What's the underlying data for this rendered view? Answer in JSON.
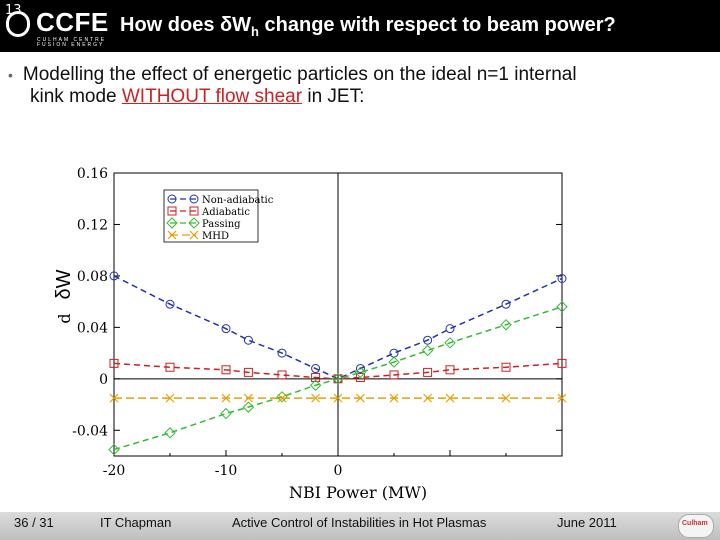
{
  "header": {
    "slide_number": "13",
    "logo_text": "CCFE",
    "logo_sub": "CULHAM CENTRE FUSION ENERGY",
    "title_pre": "How does δW",
    "title_sub": "h",
    "title_post": " change with respect to beam power?"
  },
  "bullet": {
    "line1": "Modelling the effect of energetic particles on the ideal n=1 internal",
    "line2_pre": "kink mode ",
    "line2_highlight": "WITHOUT flow shear",
    "line2_post": " in JET:"
  },
  "chart_data": {
    "type": "line",
    "xlabel": "NBI Power (MW)",
    "ylabel_prefix": "d",
    "ylabel": "δW",
    "xlim": [
      -20,
      20
    ],
    "ylim": [
      -0.06,
      0.16
    ],
    "xticks": [
      -20,
      -10,
      0
    ],
    "yticks": [
      -0.04,
      0,
      0.04,
      0.08,
      0.12,
      0.16
    ],
    "ytick_labels": [
      "-0.04",
      "0",
      "0.04",
      "0.08",
      "0.12",
      "0.16"
    ],
    "xtick_labels": [
      "-20",
      "-10",
      "0"
    ],
    "legend_position": "top-left",
    "series": [
      {
        "name": "Non-adiabatic",
        "color": "#2233aa",
        "marker": "circle",
        "dash": "6,4",
        "x": [
          -20,
          -15,
          -10,
          -8,
          -5,
          -2,
          0,
          2,
          5,
          8,
          10,
          15,
          20
        ],
        "y": [
          0.08,
          0.058,
          0.039,
          0.03,
          0.02,
          0.008,
          0.0,
          0.008,
          0.02,
          0.03,
          0.039,
          0.058,
          0.078
        ]
      },
      {
        "name": "Adiabatic",
        "color": "#cc2222",
        "marker": "square",
        "dash": "6,4",
        "x": [
          -20,
          -15,
          -10,
          -8,
          -5,
          -2,
          0,
          2,
          5,
          8,
          10,
          15,
          20
        ],
        "y": [
          0.012,
          0.009,
          0.007,
          0.005,
          0.003,
          0.001,
          0.0,
          0.001,
          0.003,
          0.005,
          0.007,
          0.009,
          0.012
        ]
      },
      {
        "name": "Passing",
        "color": "#33bb33",
        "marker": "diamond",
        "dash": "6,4",
        "x": [
          -20,
          -15,
          -10,
          -8,
          -5,
          -2,
          0,
          2,
          5,
          8,
          10,
          15,
          20
        ],
        "y": [
          -0.055,
          -0.042,
          -0.027,
          -0.022,
          -0.014,
          -0.005,
          0.0,
          0.005,
          0.013,
          0.022,
          0.028,
          0.042,
          0.056
        ]
      },
      {
        "name": "MHD",
        "color": "#e8a000",
        "marker": "x",
        "dash": "8,4",
        "x": [
          -20,
          -15,
          -10,
          -8,
          -5,
          -2,
          0,
          2,
          5,
          8,
          10,
          15,
          20
        ],
        "y": [
          -0.015,
          -0.015,
          -0.015,
          -0.015,
          -0.015,
          -0.015,
          -0.015,
          -0.015,
          -0.015,
          -0.015,
          -0.015,
          -0.015,
          -0.015
        ]
      }
    ]
  },
  "footer": {
    "page": "36 / 31",
    "author": "IT Chapman",
    "talk_title": "Active Control of Instabilities in Hot Plasmas",
    "date": "June 2011",
    "logo_text": "Culham"
  }
}
